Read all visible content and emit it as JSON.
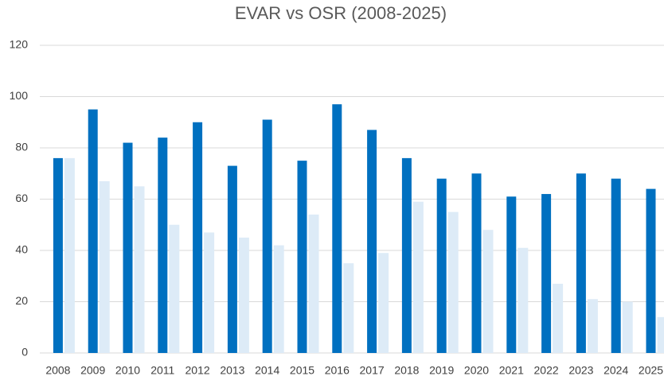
{
  "chart_data": {
    "type": "bar",
    "title": "EVAR vs OSR (2008-2025)",
    "categories": [
      "2008",
      "2009",
      "2010",
      "2011",
      "2012",
      "2013",
      "2014",
      "2015",
      "2016",
      "2017",
      "2018",
      "2019",
      "2020",
      "2021",
      "2022",
      "2023",
      "2024",
      "2025"
    ],
    "series": [
      {
        "color": "#0070c0",
        "values": [
          76,
          95,
          82,
          84,
          90,
          73,
          91,
          75,
          97,
          87,
          76,
          68,
          70,
          61,
          62,
          70,
          68,
          64
        ]
      },
      {
        "color": "#ddebf7",
        "values": [
          76,
          67,
          65,
          50,
          47,
          45,
          42,
          54,
          35,
          39,
          59,
          55,
          48,
          41,
          27,
          21,
          20,
          14
        ]
      }
    ],
    "ylim": [
      0,
      120
    ],
    "yticks": [
      0,
      20,
      40,
      60,
      80,
      100,
      120
    ],
    "grid": true
  }
}
